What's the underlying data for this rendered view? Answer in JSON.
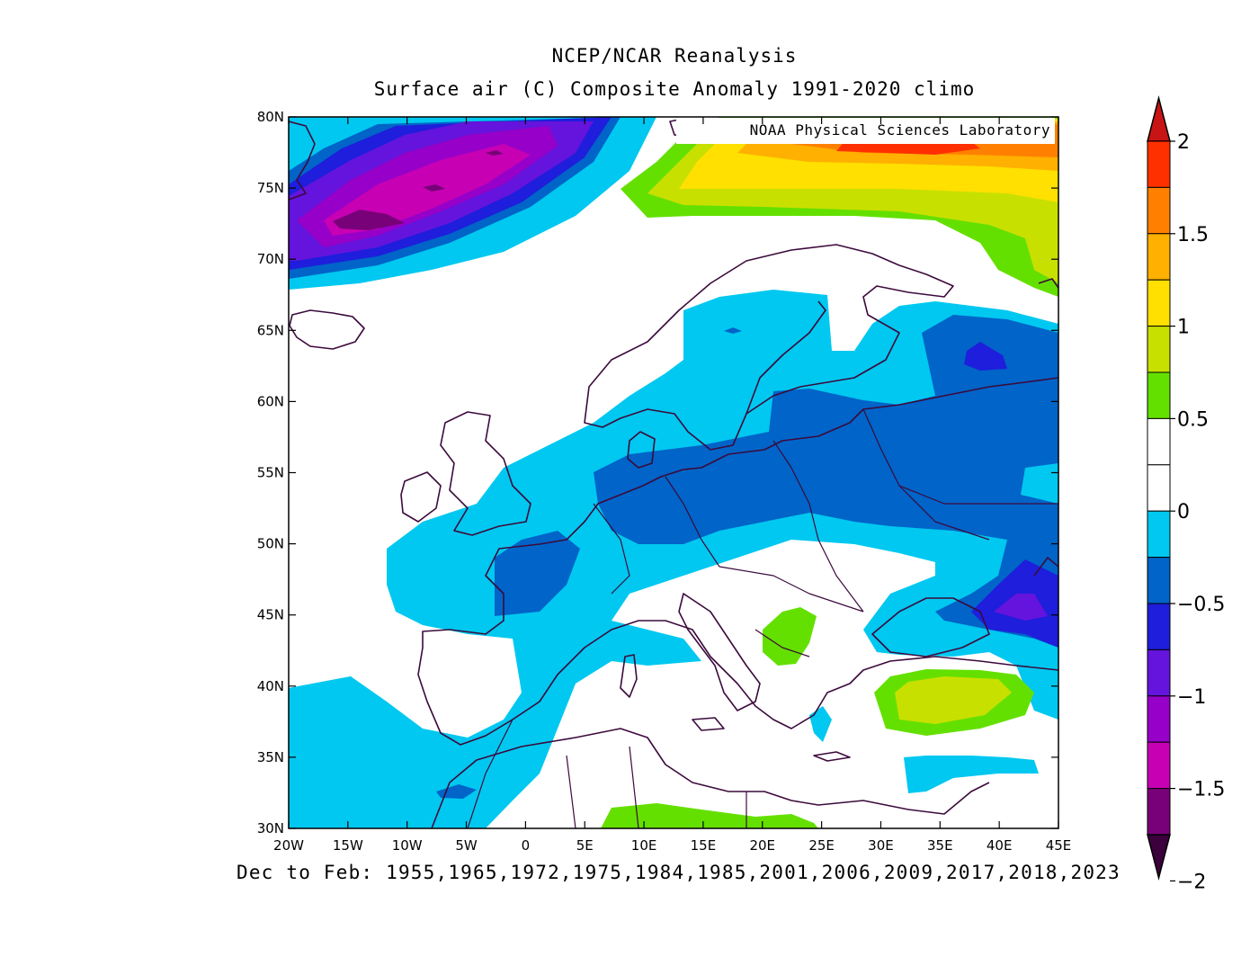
{
  "title": {
    "line1": "NCEP/NCAR Reanalysis",
    "line2": "Surface air (C) Composite Anomaly 1991-2020 climo"
  },
  "credit": "NOAA Physical Sciences Laboratory",
  "footer": "Dec to Feb: 1955,1965,1972,1975,1984,1985,2001,2006,2009,2017,2018,2023",
  "map": {
    "lon_range": [
      -20,
      45
    ],
    "lat_range": [
      30,
      80
    ],
    "lon_ticks": [
      "20W",
      "15W",
      "10W",
      "5W",
      "0",
      "5E",
      "10E",
      "15E",
      "20E",
      "25E",
      "30E",
      "35E",
      "40E",
      "45E"
    ],
    "lat_ticks": [
      "30N",
      "35N",
      "40N",
      "45N",
      "50N",
      "55N",
      "60N",
      "65N",
      "70N",
      "75N",
      "80N"
    ]
  },
  "colorbar": {
    "labels": [
      "2",
      "1.5",
      "1",
      "0.5",
      "0",
      "-0.5",
      "-1",
      "-1.5",
      "-2"
    ],
    "colors_top_to_bottom": [
      "#ff3000",
      "#ff8000",
      "#ffb000",
      "#ffe000",
      "#c8e000",
      "#64e000",
      "#ffffff",
      "#ffffff",
      "#00c8f0",
      "#0064c8",
      "#1e1edc",
      "#6414dc",
      "#9600c8",
      "#c800b4",
      "#780078"
    ],
    "upper_arrow_color": "#c81414",
    "lower_arrow_color": "#3c003c"
  },
  "legend_colors": {
    "light_blue": "#00c8f0",
    "blue": "#0064c8",
    "dark_blue": "#1e1edc",
    "violet": "#6414dc",
    "purple": "#9600c8",
    "magenta": "#c800b4",
    "dark_purple": "#780078",
    "green": "#64e000",
    "yellow_green": "#c8e000",
    "yellow": "#ffe000",
    "orange_yellow": "#ffb000",
    "orange": "#ff8000",
    "red_orange": "#ff3000",
    "coast": "#3c0a3c"
  }
}
